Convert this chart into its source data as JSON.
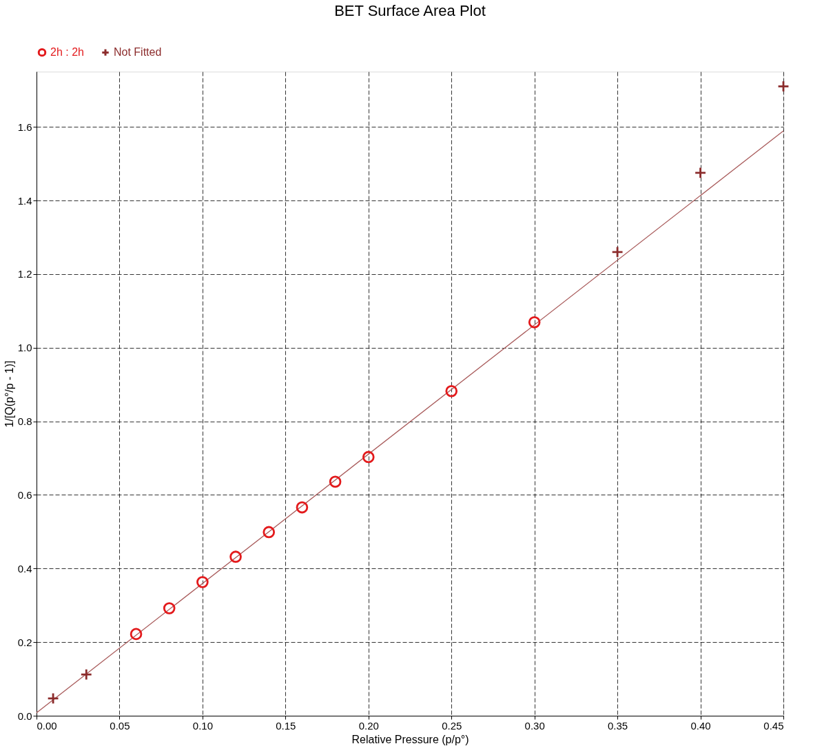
{
  "chart_data": {
    "type": "scatter",
    "title": "BET Surface Area Plot",
    "xlabel": "Relative Pressure (p/p°)",
    "ylabel": "1/[Q(p°/p - 1)]",
    "xlim": [
      0,
      0.45
    ],
    "ylim": [
      0,
      1.75
    ],
    "xticks": [
      {
        "value": 0,
        "label": "0.00"
      },
      {
        "value": 0.05,
        "label": "0.05"
      },
      {
        "value": 0.1,
        "label": "0.10"
      },
      {
        "value": 0.15,
        "label": "0.15"
      },
      {
        "value": 0.2,
        "label": "0.20"
      },
      {
        "value": 0.25,
        "label": "0.25"
      },
      {
        "value": 0.3,
        "label": "0.30"
      },
      {
        "value": 0.35,
        "label": "0.35"
      },
      {
        "value": 0.4,
        "label": "0.40"
      },
      {
        "value": 0.45,
        "label": "0.45"
      }
    ],
    "yticks": [
      {
        "value": 0,
        "label": "0.0"
      },
      0.2,
      0.4,
      0.6,
      0.8,
      {
        "value": 1,
        "label": "1.0"
      },
      1.2,
      1.4,
      1.6
    ],
    "grid": true,
    "legend": "top left",
    "series": [
      {
        "name": "2h : 2h",
        "marker": "circle",
        "color": "#e31a1c",
        "x": [
          0.06,
          0.08,
          0.1,
          0.12,
          0.14,
          0.16,
          0.18,
          0.2,
          0.25,
          0.3
        ],
        "values": [
          0.222,
          0.292,
          0.363,
          0.432,
          0.499,
          0.566,
          0.636,
          0.703,
          0.882,
          1.069
        ]
      },
      {
        "name": "Not Fitted",
        "marker": "cross",
        "color": "#8b2b2b",
        "x": [
          0.01,
          0.03,
          0.35,
          0.4,
          0.45
        ],
        "values": [
          0.047,
          0.112,
          1.26,
          1.475,
          1.71
        ]
      },
      {
        "type": "line",
        "marker": "none",
        "line_style": "solid",
        "color": "#a85a5a",
        "x": [
          0,
          0.45
        ],
        "values": [
          0.008,
          1.589
        ]
      }
    ]
  }
}
